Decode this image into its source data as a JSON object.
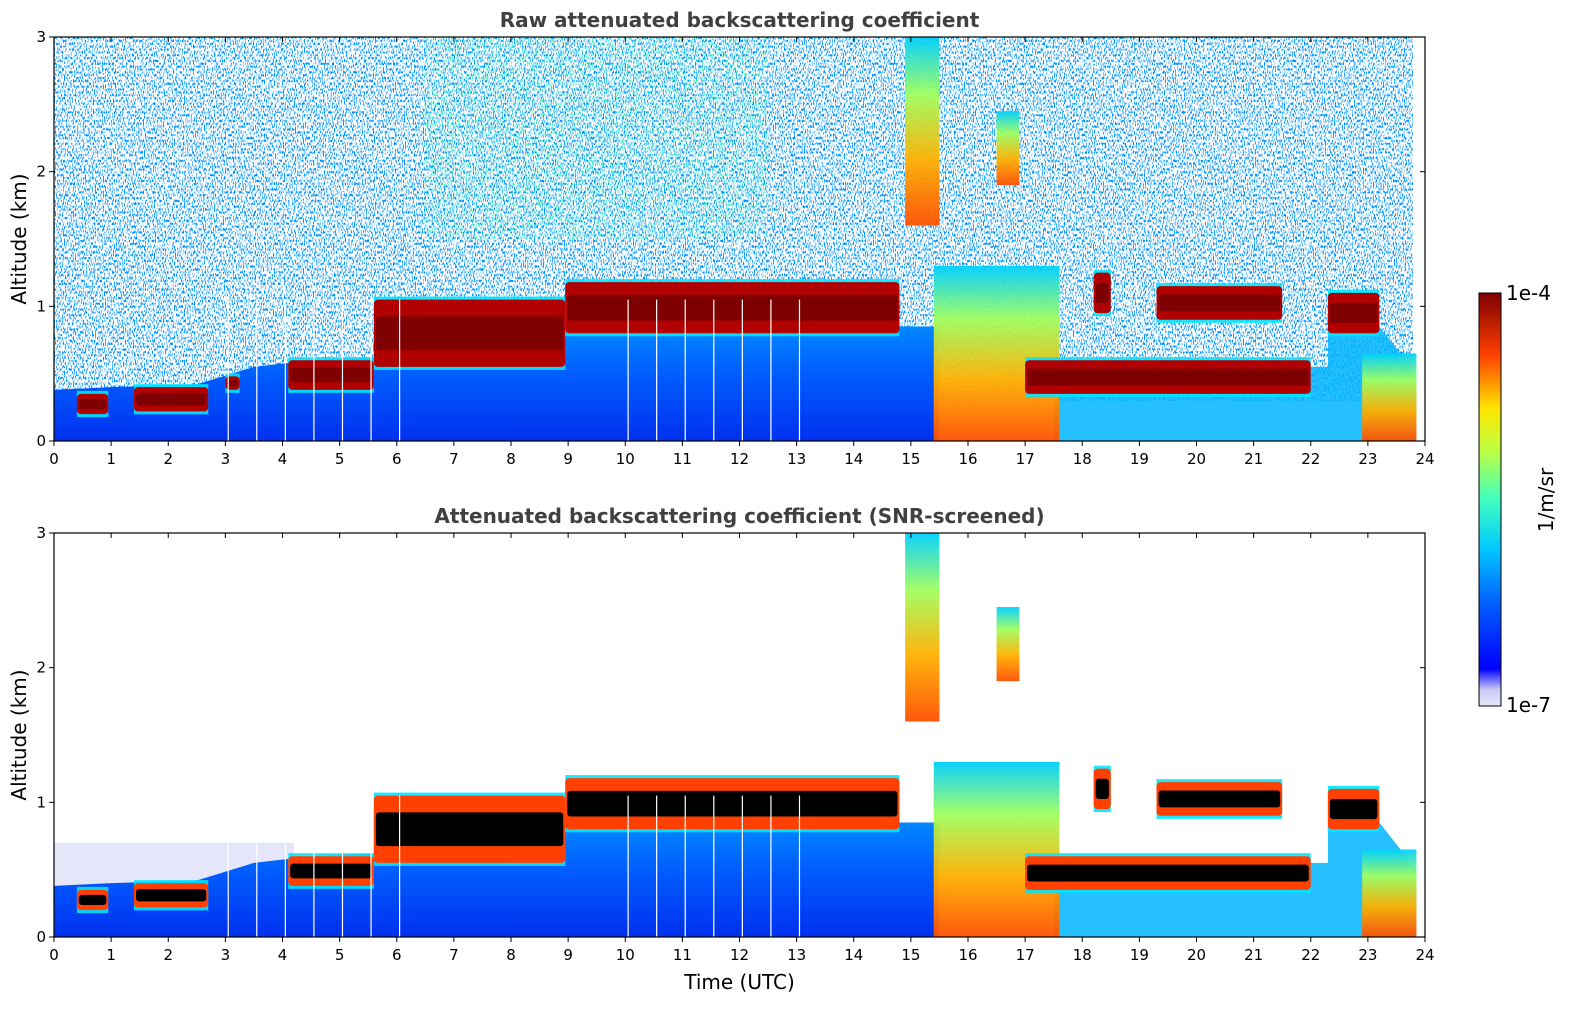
{
  "chart_data": [
    {
      "type": "heatmap",
      "title": "Raw attenuated backscattering coefficient",
      "xlabel": "",
      "ylabel": "Altitude (km)",
      "xlim": [
        0,
        24
      ],
      "ylim": [
        0,
        3
      ],
      "x_ticks": [
        "0",
        "1",
        "2",
        "3",
        "4",
        "5",
        "6",
        "7",
        "8",
        "9",
        "10",
        "11",
        "12",
        "13",
        "14",
        "15",
        "16",
        "17",
        "18",
        "19",
        "20",
        "21",
        "22",
        "23",
        "24"
      ],
      "y_ticks": [
        "0",
        "1",
        "2",
        "3"
      ],
      "noise_above_boundary_layer": true,
      "features": [
        {
          "kind": "cloud_layer",
          "t": [
            0.4,
            0.95
          ],
          "base": 0.2,
          "top": 0.35
        },
        {
          "kind": "cloud_layer",
          "t": [
            1.4,
            2.7
          ],
          "base": 0.22,
          "top": 0.4
        },
        {
          "kind": "cloud_layer",
          "t": [
            3.0,
            3.25
          ],
          "base": 0.38,
          "top": 0.48
        },
        {
          "kind": "cloud_layer",
          "t": [
            4.1,
            5.6
          ],
          "base": 0.38,
          "top": 0.6
        },
        {
          "kind": "cloud_layer",
          "t": [
            5.6,
            8.95
          ],
          "base": 0.55,
          "top": 1.05
        },
        {
          "kind": "cloud_layer",
          "t": [
            8.95,
            14.8
          ],
          "base": 0.8,
          "top": 1.18
        },
        {
          "kind": "precipitation",
          "t": [
            14.9,
            15.5
          ],
          "base": 1.6,
          "top": 3.0
        },
        {
          "kind": "precipitation",
          "t": [
            15.4,
            17.6
          ],
          "base": 0.0,
          "top": 1.3
        },
        {
          "kind": "precipitation",
          "t": [
            16.5,
            16.9
          ],
          "base": 1.9,
          "top": 2.45
        },
        {
          "kind": "cloud_layer",
          "t": [
            17.0,
            22.0
          ],
          "base": 0.35,
          "top": 0.6
        },
        {
          "kind": "cloud_layer",
          "t": [
            18.2,
            18.5
          ],
          "base": 0.95,
          "top": 1.25
        },
        {
          "kind": "cloud_layer",
          "t": [
            19.3,
            21.5
          ],
          "base": 0.9,
          "top": 1.15
        },
        {
          "kind": "cloud_layer",
          "t": [
            22.3,
            23.2
          ],
          "base": 0.8,
          "top": 1.1
        },
        {
          "kind": "precipitation",
          "t": [
            22.9,
            23.85
          ],
          "base": 0.0,
          "top": 0.65
        }
      ]
    },
    {
      "type": "heatmap",
      "title": "Attenuated backscattering coefficient (SNR-screened)",
      "xlabel": "Time (UTC)",
      "ylabel": "Altitude (km)",
      "xlim": [
        0,
        24
      ],
      "ylim": [
        0,
        3
      ],
      "x_ticks": [
        "0",
        "1",
        "2",
        "3",
        "4",
        "5",
        "6",
        "7",
        "8",
        "9",
        "10",
        "11",
        "12",
        "13",
        "14",
        "15",
        "16",
        "17",
        "18",
        "19",
        "20",
        "21",
        "22",
        "23",
        "24"
      ],
      "y_ticks": [
        "0",
        "1",
        "2",
        "3"
      ],
      "noise_above_boundary_layer": false,
      "saturated_color": "#000000",
      "features": [
        {
          "kind": "cloud_layer",
          "t": [
            0.4,
            0.95
          ],
          "base": 0.2,
          "top": 0.35
        },
        {
          "kind": "cloud_layer",
          "t": [
            1.4,
            2.7
          ],
          "base": 0.22,
          "top": 0.4
        },
        {
          "kind": "cloud_layer",
          "t": [
            4.1,
            5.6
          ],
          "base": 0.38,
          "top": 0.6
        },
        {
          "kind": "cloud_layer",
          "t": [
            5.6,
            8.95
          ],
          "base": 0.55,
          "top": 1.05
        },
        {
          "kind": "cloud_layer",
          "t": [
            8.95,
            14.8
          ],
          "base": 0.8,
          "top": 1.18
        },
        {
          "kind": "precipitation",
          "t": [
            14.9,
            15.5
          ],
          "base": 1.6,
          "top": 3.0
        },
        {
          "kind": "precipitation",
          "t": [
            15.4,
            17.6
          ],
          "base": 0.0,
          "top": 1.3
        },
        {
          "kind": "precipitation",
          "t": [
            16.5,
            16.9
          ],
          "base": 1.9,
          "top": 2.45
        },
        {
          "kind": "cloud_layer",
          "t": [
            17.0,
            22.0
          ],
          "base": 0.35,
          "top": 0.6
        },
        {
          "kind": "cloud_layer",
          "t": [
            18.2,
            18.5
          ],
          "base": 0.95,
          "top": 1.25
        },
        {
          "kind": "cloud_layer",
          "t": [
            19.3,
            21.5
          ],
          "base": 0.9,
          "top": 1.15
        },
        {
          "kind": "cloud_layer",
          "t": [
            22.3,
            23.2
          ],
          "base": 0.8,
          "top": 1.1
        },
        {
          "kind": "precipitation",
          "t": [
            22.9,
            23.85
          ],
          "base": 0.0,
          "top": 0.65
        }
      ]
    }
  ],
  "colorbar": {
    "max_label": "1e-4",
    "min_label": "1e-7",
    "unit_label": "1/m/sr",
    "colormap": "jet",
    "colors": [
      "#e6e6fa",
      "#0000ff",
      "#0080ff",
      "#00e5ff",
      "#7fff7f",
      "#ffe500",
      "#ff4000",
      "#7f0000"
    ]
  }
}
